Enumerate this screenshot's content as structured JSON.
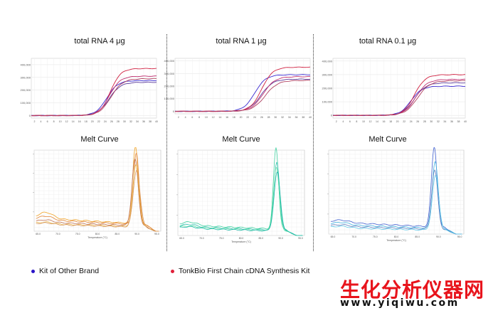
{
  "legend": {
    "other_brand": "Kit of Other Brand",
    "tonkbio": "TonkBio First Chain cDNA Synthesis Kit",
    "other_brand_color": "#2a14c8",
    "tonkbio_color": "#e0203a"
  },
  "watermark": {
    "text": "生化分析仪器网",
    "url": "www.yiqiwu.com"
  },
  "chart_data": [
    {
      "id": "amp-4ug",
      "type": "line",
      "title": "total RNA 4 μg",
      "x_ticks": [
        "2",
        "4",
        "6",
        "8",
        "10",
        "12",
        "14",
        "16",
        "18",
        "20",
        "22",
        "24",
        "26",
        "28",
        "30",
        "32",
        "34",
        "36",
        "38",
        "40"
      ],
      "xlim": [
        1,
        40
      ],
      "y_ticks": [
        "0",
        "100,000",
        "200,000",
        "300,000",
        "400,000"
      ],
      "ylim": [
        -20000,
        450000
      ],
      "series": [
        {
          "group": "other",
          "color": "#3a2ad0",
          "plateau": 275000,
          "midpoint": 24.5,
          "slope": 1.7
        },
        {
          "group": "other",
          "color": "#5a3a9a",
          "plateau": 262000,
          "midpoint": 25.2,
          "slope": 1.8
        },
        {
          "group": "tonkbio",
          "color": "#d02040",
          "plateau": 370000,
          "midpoint": 25.6,
          "slope": 1.6
        },
        {
          "group": "tonkbio",
          "color": "#c03070",
          "plateau": 310000,
          "midpoint": 25.3,
          "slope": 1.7
        },
        {
          "group": "tonkbio",
          "color": "#b04060",
          "plateau": 290000,
          "midpoint": 25.8,
          "slope": 1.8
        }
      ]
    },
    {
      "id": "amp-1ug",
      "type": "line",
      "title": "total RNA 1 μg",
      "x_ticks": [
        "2",
        "4",
        "6",
        "8",
        "10",
        "12",
        "14",
        "16",
        "18",
        "20",
        "22",
        "24",
        "26",
        "28",
        "30",
        "32",
        "34",
        "36",
        "38",
        "40"
      ],
      "xlim": [
        1,
        40
      ],
      "y_ticks": [
        "0",
        "100,000",
        "200,000",
        "300,000",
        "400,000"
      ],
      "ylim": [
        -20000,
        420000
      ],
      "series": [
        {
          "group": "other",
          "color": "#3a2ad0",
          "plateau": 290000,
          "midpoint": 24.0,
          "slope": 1.6
        },
        {
          "group": "other",
          "color": "#5a3a9a",
          "plateau": 255000,
          "midpoint": 25.8,
          "slope": 1.7
        },
        {
          "group": "tonkbio",
          "color": "#d02040",
          "plateau": 350000,
          "midpoint": 26.0,
          "slope": 1.6
        },
        {
          "group": "tonkbio",
          "color": "#c03070",
          "plateau": 275000,
          "midpoint": 26.4,
          "slope": 1.7
        },
        {
          "group": "tonkbio",
          "color": "#b04060",
          "plateau": 245000,
          "midpoint": 27.0,
          "slope": 1.8
        }
      ]
    },
    {
      "id": "amp-01ug",
      "type": "line",
      "title": "total RNA 0.1 μg",
      "x_ticks": [
        "2",
        "4",
        "6",
        "8",
        "10",
        "12",
        "14",
        "16",
        "18",
        "20",
        "22",
        "24",
        "26",
        "28",
        "30",
        "32",
        "34",
        "36",
        "38",
        "40"
      ],
      "xlim": [
        1,
        40
      ],
      "y_ticks": [
        "0",
        "100,000",
        "200,000",
        "300,000",
        "400,000"
      ],
      "ylim": [
        -20000,
        420000
      ],
      "series": [
        {
          "group": "other",
          "color": "#3a2ad0",
          "plateau": 215000,
          "midpoint": 24.0,
          "slope": 1.6
        },
        {
          "group": "other",
          "color": "#5a3a9a",
          "plateau": 240000,
          "midpoint": 25.0,
          "slope": 1.7
        },
        {
          "group": "tonkbio",
          "color": "#d02040",
          "plateau": 300000,
          "midpoint": 25.0,
          "slope": 1.6
        },
        {
          "group": "tonkbio",
          "color": "#c03070",
          "plateau": 265000,
          "midpoint": 25.4,
          "slope": 1.7
        },
        {
          "group": "tonkbio",
          "color": "#b04060",
          "plateau": 255000,
          "midpoint": 25.9,
          "slope": 1.8
        }
      ]
    },
    {
      "id": "melt-1",
      "type": "line",
      "title": "Melt Curve",
      "xlabel": "Temperature (°C)",
      "ylabel": "",
      "xlim": [
        64,
        96
      ],
      "ylim": [
        0,
        1.05
      ],
      "x_ticks": [
        "65.0",
        "70.0",
        "75.0",
        "80.0",
        "85.0",
        "90.0",
        "95.0"
      ],
      "x_tick_values": [
        65,
        70,
        75,
        80,
        85,
        90,
        95
      ],
      "y_ticks": [
        "",
        "",
        "",
        ""
      ],
      "series": [
        {
          "color": "#f0a020",
          "peak": 1.0,
          "center": 89.6,
          "width": 1.0,
          "baseline": 0.17,
          "bump": 0.08
        },
        {
          "color": "#e08030",
          "peak": 0.92,
          "center": 89.8,
          "width": 1.0,
          "baseline": 0.15,
          "bump": 0.05
        },
        {
          "color": "#c07050",
          "peak": 0.86,
          "center": 89.5,
          "width": 1.1,
          "baseline": 0.12,
          "bump": 0.03
        },
        {
          "color": "#e8b040",
          "peak": 0.8,
          "center": 89.7,
          "width": 1.1,
          "baseline": 0.1,
          "bump": 0.02
        },
        {
          "color": "#d89860",
          "peak": 0.74,
          "center": 89.9,
          "width": 1.2,
          "baseline": 0.09,
          "bump": 0.02
        }
      ]
    },
    {
      "id": "melt-2",
      "type": "line",
      "title": "Melt Curve",
      "xlabel": "Temperature (°C)",
      "ylabel": "",
      "xlim": [
        64,
        96
      ],
      "ylim": [
        0,
        1.05
      ],
      "x_ticks": [
        "65.0",
        "70.0",
        "75.0",
        "80.0",
        "85.0",
        "90.0",
        "95.0"
      ],
      "x_tick_values": [
        65,
        70,
        75,
        80,
        85,
        90,
        95
      ],
      "y_ticks": [
        "",
        "",
        "",
        ""
      ],
      "series": [
        {
          "color": "#40d0a0",
          "peak": 1.0,
          "center": 88.8,
          "width": 0.9,
          "baseline": 0.13,
          "bump": 0.04
        },
        {
          "color": "#30c0b0",
          "peak": 0.84,
          "center": 89.0,
          "width": 1.0,
          "baseline": 0.11,
          "bump": 0.03
        },
        {
          "color": "#60e0a8",
          "peak": 0.78,
          "center": 88.9,
          "width": 1.0,
          "baseline": 0.1,
          "bump": 0.02
        },
        {
          "color": "#20b8a8",
          "peak": 0.72,
          "center": 89.1,
          "width": 1.1,
          "baseline": 0.09,
          "bump": 0.02
        }
      ]
    },
    {
      "id": "melt-3",
      "type": "line",
      "title": "Melt Curve",
      "xlabel": "Temperature (°C)",
      "ylabel": "",
      "xlim": [
        64,
        96
      ],
      "ylim": [
        0,
        1.05
      ],
      "x_ticks": [
        "65.0",
        "70.0",
        "75.0",
        "80.0",
        "85.0",
        "90.0",
        "95.0"
      ],
      "x_tick_values": [
        65,
        70,
        75,
        80,
        85,
        90,
        95
      ],
      "y_ticks": [
        "",
        "",
        "",
        ""
      ],
      "series": [
        {
          "color": "#4060d0",
          "peak": 1.0,
          "center": 89.0,
          "width": 0.95,
          "baseline": 0.15,
          "bump": 0.03
        },
        {
          "color": "#40b0e0",
          "peak": 0.84,
          "center": 89.2,
          "width": 1.0,
          "baseline": 0.12,
          "bump": 0.03
        },
        {
          "color": "#6080c0",
          "peak": 0.74,
          "center": 89.1,
          "width": 1.0,
          "baseline": 0.1,
          "bump": 0.02
        },
        {
          "color": "#60c8e8",
          "peak": 0.68,
          "center": 89.3,
          "width": 1.1,
          "baseline": 0.08,
          "bump": 0.02
        }
      ]
    }
  ]
}
